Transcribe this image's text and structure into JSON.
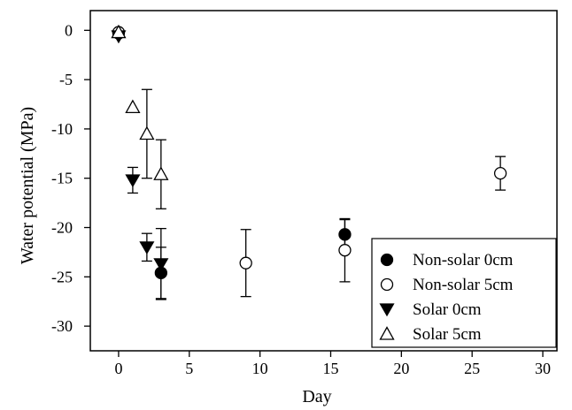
{
  "chart_data": {
    "type": "scatter",
    "xlabel": "Day",
    "ylabel": "Water potential (MPa)",
    "xlim": [
      -2,
      31
    ],
    "ylim": [
      -32.5,
      2
    ],
    "x_ticks": [
      0,
      5,
      10,
      15,
      20,
      25,
      30
    ],
    "y_ticks": [
      0,
      -5,
      -10,
      -15,
      -20,
      -25,
      -30
    ],
    "x_tick_labels": [
      "0",
      "5",
      "10",
      "15",
      "20",
      "25",
      "30"
    ],
    "y_tick_labels": [
      "0",
      "-5",
      "-10",
      "-15",
      "-20",
      "-25",
      "-30"
    ],
    "grid": false,
    "legend_position": "bottom-right",
    "error_bars": true,
    "series": [
      {
        "name": "Non-solar 0cm",
        "marker": "filled-circle",
        "color": "#000000",
        "points": [
          {
            "x": 0,
            "y": -0.3,
            "err": null
          },
          {
            "x": 3,
            "y": -24.6,
            "err": 2.6
          },
          {
            "x": 16,
            "y": -20.7,
            "err": 1.5
          }
        ]
      },
      {
        "name": "Non-solar 5cm",
        "marker": "open-circle",
        "color": "#000000",
        "points": [
          {
            "x": 0,
            "y": -0.2,
            "err": null
          },
          {
            "x": 9,
            "y": -23.6,
            "err": 3.4
          },
          {
            "x": 16,
            "y": -22.3,
            "err": 3.2
          },
          {
            "x": 27,
            "y": -14.5,
            "err": 1.7
          }
        ]
      },
      {
        "name": "Solar 0cm",
        "marker": "filled-triangle-down",
        "color": "#000000",
        "points": [
          {
            "x": 0,
            "y": -0.6,
            "err": null
          },
          {
            "x": 1,
            "y": -15.2,
            "err": 1.3
          },
          {
            "x": 2,
            "y": -22.0,
            "err": 1.4
          },
          {
            "x": 3,
            "y": -23.7,
            "err": 3.6
          }
        ]
      },
      {
        "name": "Solar 5cm",
        "marker": "open-triangle-up",
        "color": "#000000",
        "points": [
          {
            "x": 0,
            "y": -0.2,
            "err": null
          },
          {
            "x": 1,
            "y": -7.8,
            "err": null
          },
          {
            "x": 2,
            "y": -10.5,
            "err": 4.5
          },
          {
            "x": 3,
            "y": -14.6,
            "err": 3.5
          }
        ]
      }
    ]
  }
}
